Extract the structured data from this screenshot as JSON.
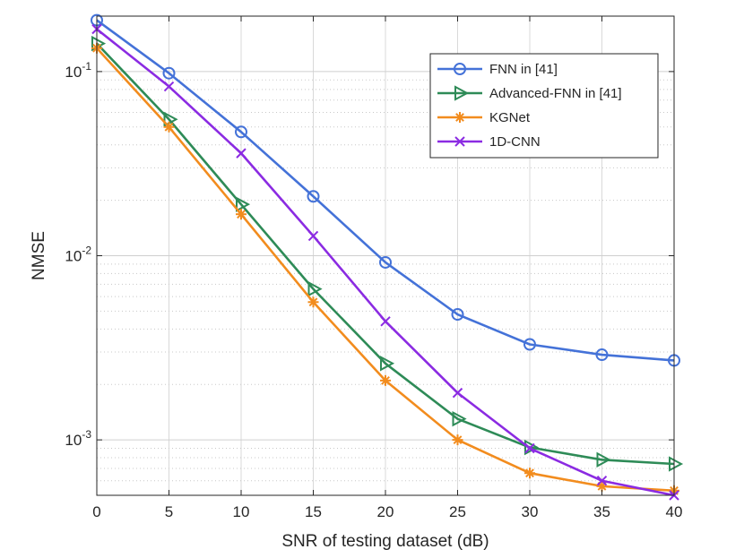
{
  "chart_data": {
    "type": "line",
    "title": "",
    "xlabel": "SNR of testing dataset (dB)",
    "ylabel": "NMSE",
    "xlim": [
      0,
      40
    ],
    "ylim": [
      0.0005,
      0.2
    ],
    "yscale": "log",
    "grid": true,
    "legend_position": "top-right",
    "x": [
      0,
      5,
      10,
      15,
      20,
      25,
      30,
      35,
      40
    ],
    "xticks": [
      "0",
      "5",
      "10",
      "15",
      "20",
      "25",
      "30",
      "35",
      "40"
    ],
    "yticks": [
      {
        "base": "10",
        "exp": "-1",
        "value": 0.1
      },
      {
        "base": "10",
        "exp": "-2",
        "value": 0.01
      },
      {
        "base": "10",
        "exp": "-3",
        "value": 0.001
      }
    ],
    "series": [
      {
        "name": "FNN in [41]",
        "color": "#4472d8",
        "marker": "circle",
        "values": [
          0.19,
          0.098,
          0.047,
          0.021,
          0.0092,
          0.0048,
          0.0033,
          0.0029,
          0.0027
        ]
      },
      {
        "name": "Advanced-FNN in [41]",
        "color": "#2e8b57",
        "marker": "triangle-right",
        "values": [
          0.142,
          0.055,
          0.019,
          0.0066,
          0.0026,
          0.0013,
          0.00091,
          0.00078,
          0.00074
        ]
      },
      {
        "name": "KGNet",
        "color": "#f28c1e",
        "marker": "asterisk",
        "values": [
          0.134,
          0.05,
          0.0168,
          0.0056,
          0.0021,
          0.001,
          0.00066,
          0.00056,
          0.00053
        ]
      },
      {
        "name": "1D-CNN",
        "color": "#8b2be2",
        "marker": "x",
        "values": [
          0.17,
          0.083,
          0.036,
          0.0128,
          0.0044,
          0.0018,
          0.0009,
          0.0006,
          0.0005
        ]
      }
    ]
  }
}
